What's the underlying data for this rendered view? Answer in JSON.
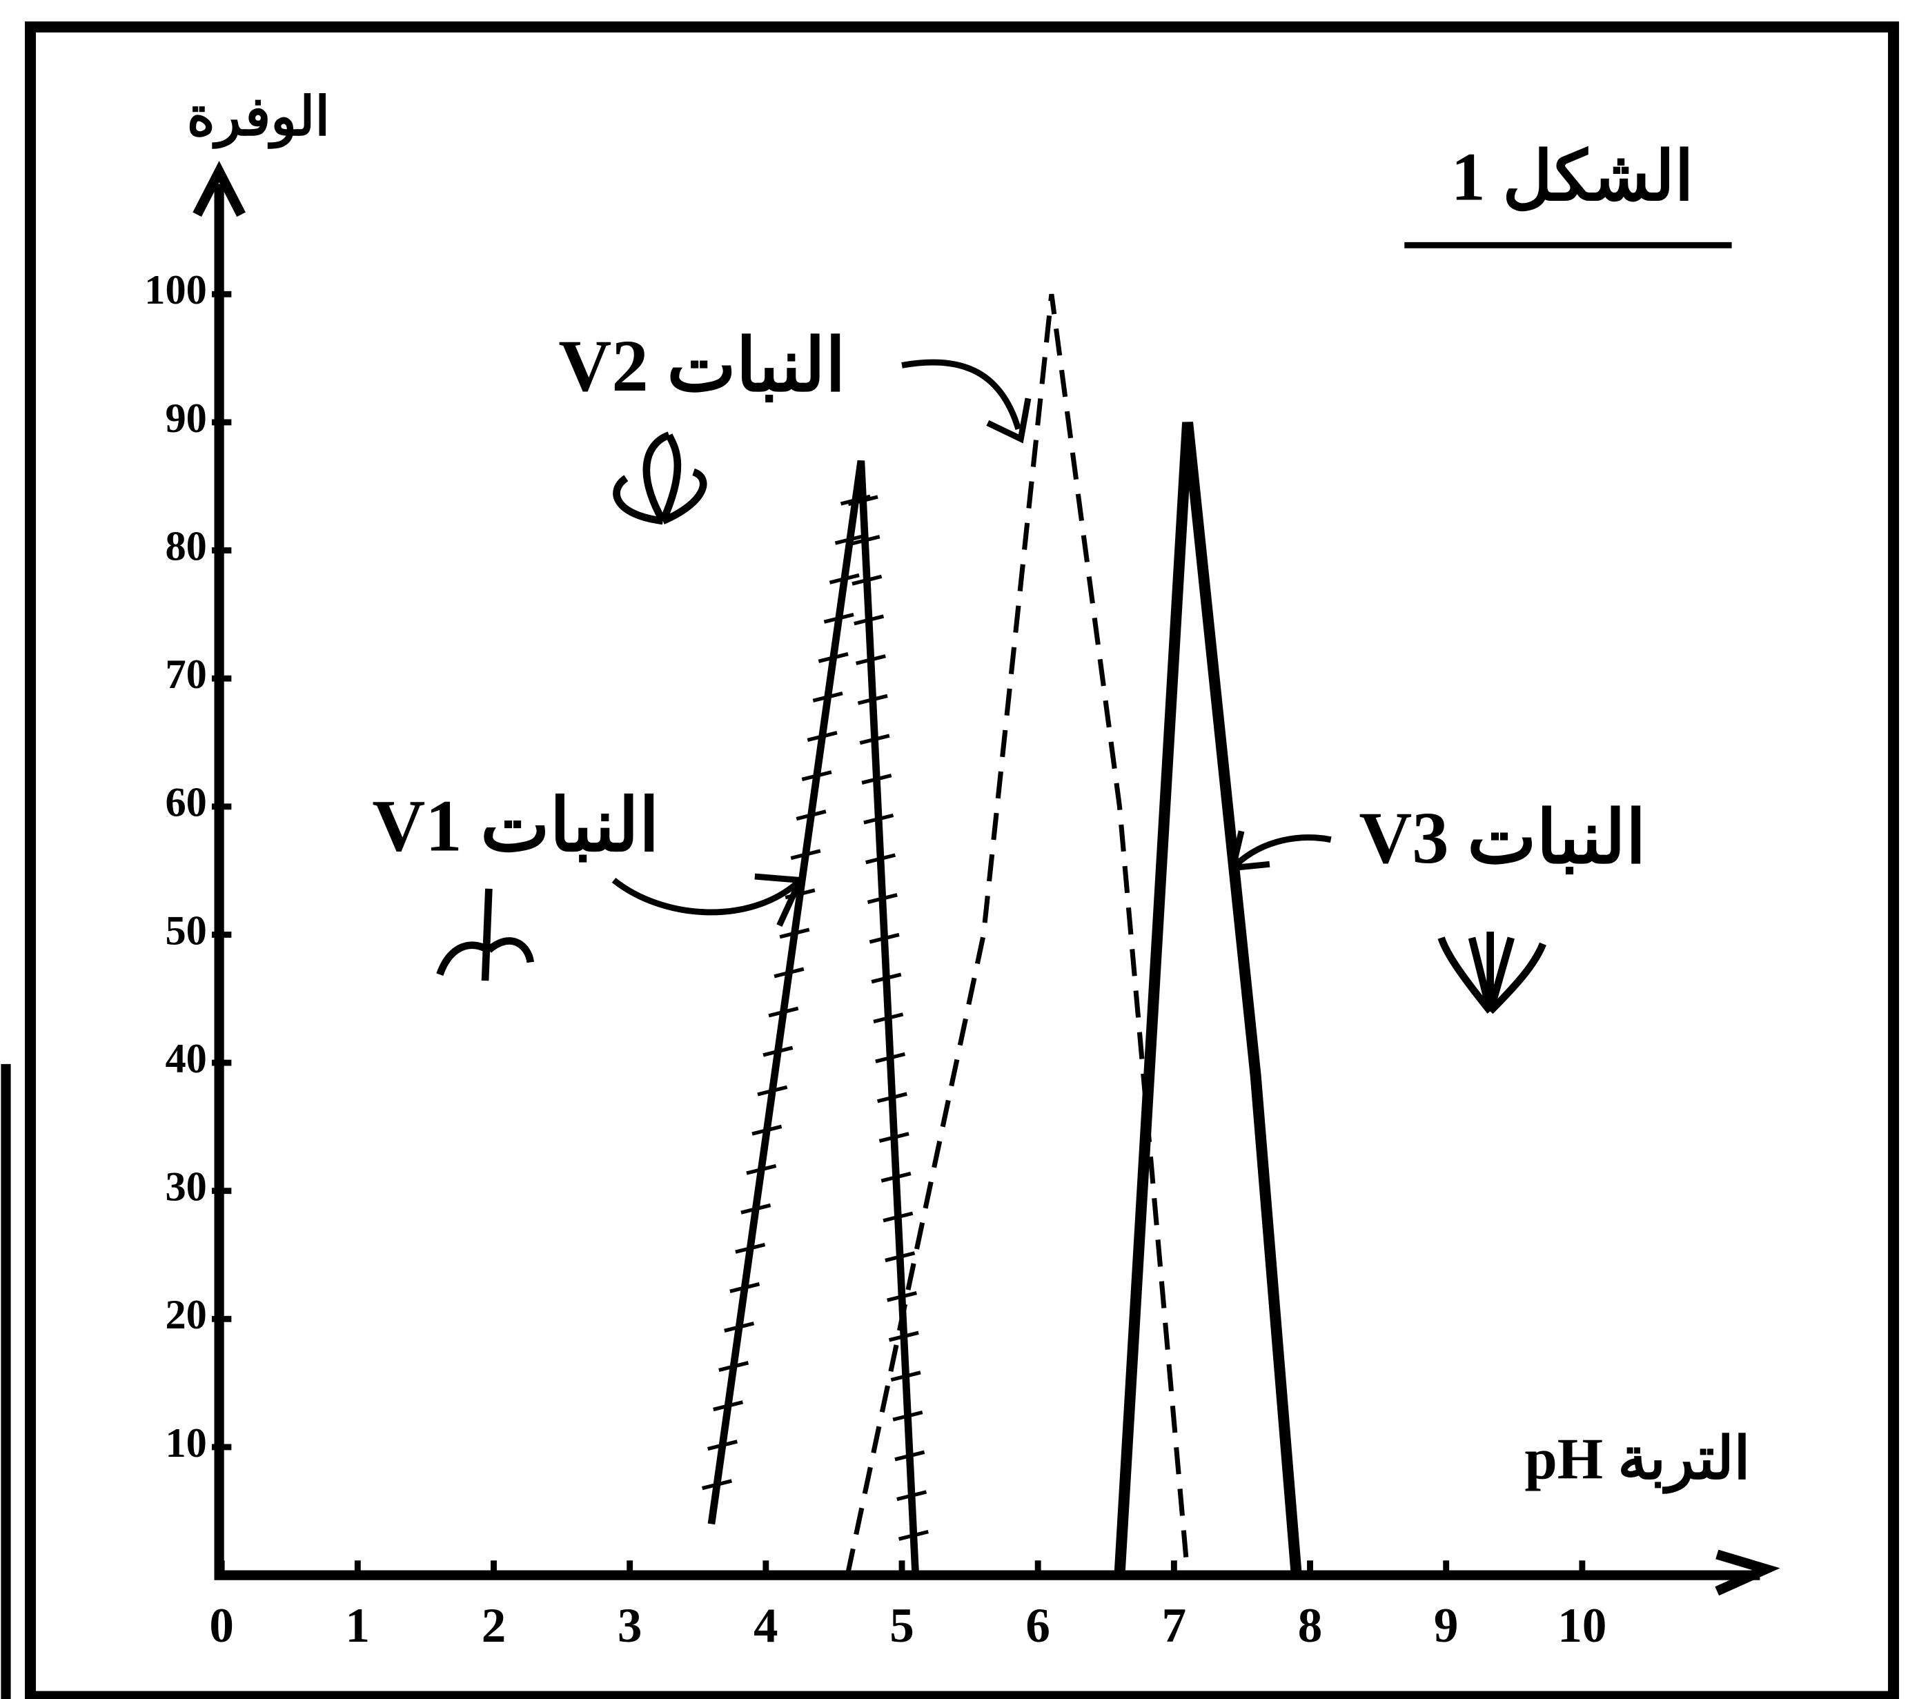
{
  "chart_data": {
    "type": "line",
    "title": "الشكل 1",
    "y_label": "الوفرة",
    "x_label": "التربة pH",
    "xlim": [
      0,
      11.5
    ],
    "ylim": [
      0,
      110
    ],
    "xticks": [
      0,
      1,
      2,
      3,
      4,
      5,
      6,
      7,
      8,
      9,
      10
    ],
    "yticks": [
      10,
      20,
      30,
      40,
      50,
      60,
      70,
      80,
      90,
      100
    ],
    "grid": false,
    "series": [
      {
        "name": "النبات V1",
        "color": "#000000",
        "line_style": "hatched",
        "x": [
          3.6,
          4.7,
          5.1
        ],
        "values": [
          4,
          87,
          0
        ]
      },
      {
        "name": "النبات V2",
        "color": "#000000",
        "line_style": "dashed",
        "x": [
          4.6,
          5.6,
          6.1,
          6.6,
          7.1
        ],
        "values": [
          0,
          50,
          100,
          60,
          0
        ]
      },
      {
        "name": "النبات V3",
        "color": "#000000",
        "line_style": "solid",
        "x": [
          6.6,
          7.1,
          7.6,
          7.9
        ],
        "values": [
          0,
          90,
          39,
          0
        ]
      }
    ]
  }
}
